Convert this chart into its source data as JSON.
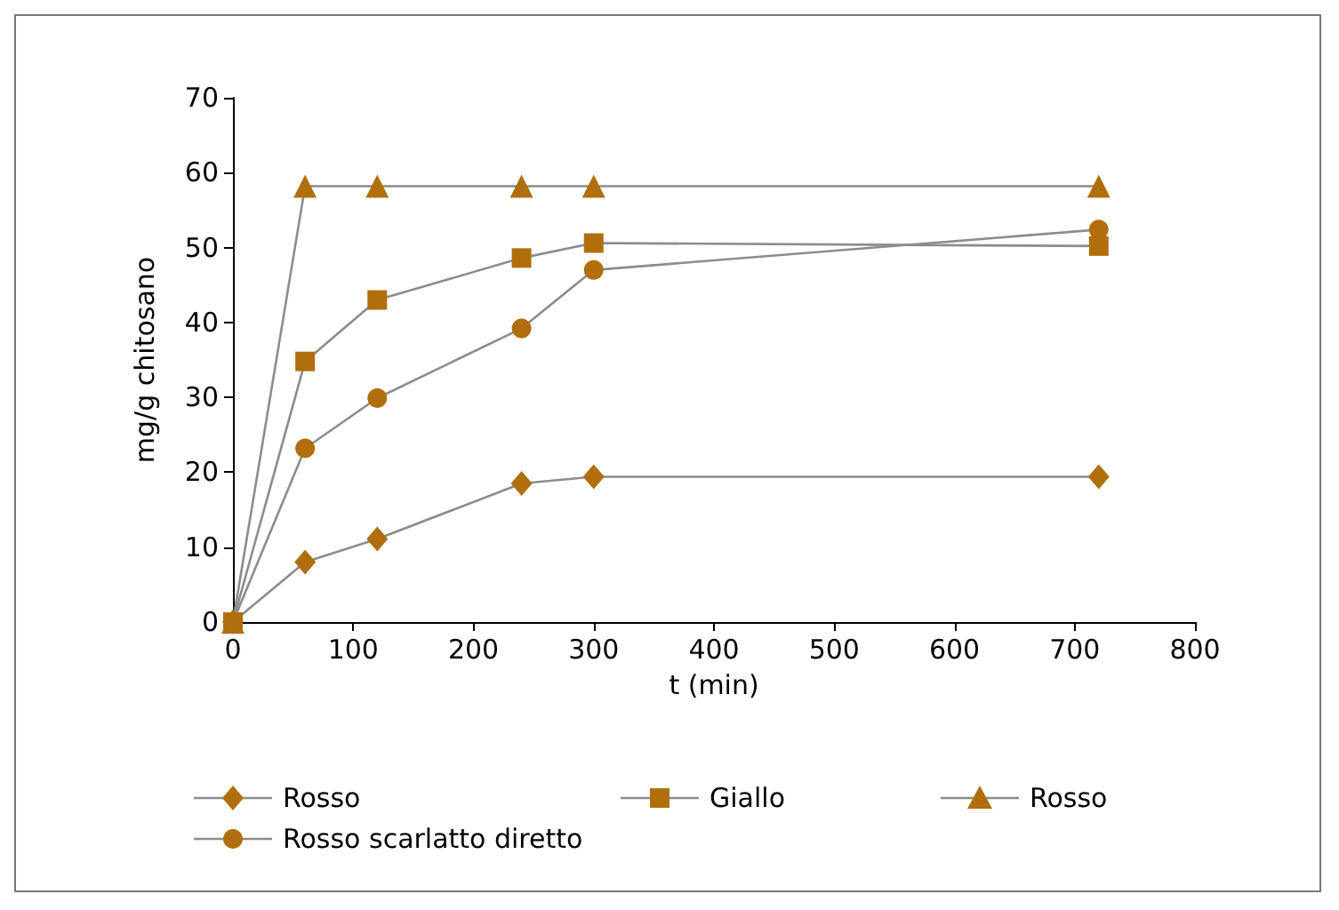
{
  "chart_data": {
    "type": "line",
    "xlabel": "t (min)",
    "ylabel": "mg/g chitosano",
    "x": [
      0,
      60,
      120,
      240,
      300,
      720
    ],
    "series": [
      {
        "name": "Rosso",
        "color": "#b06f0c",
        "marker": "diamond",
        "values": [
          0,
          8,
          11.1,
          18.5,
          19.4,
          19.4
        ]
      },
      {
        "name": "Giallo",
        "color": "#b06f0c",
        "marker": "square",
        "values": [
          0,
          34.8,
          43,
          48.6,
          50.6,
          50.2
        ]
      },
      {
        "name": "Rosso",
        "color": "#b06f0c",
        "marker": "triangle",
        "values": [
          0,
          58.2,
          58.2,
          58.2,
          58.2,
          58.2
        ]
      },
      {
        "name": "Rosso scarlatto diretto",
        "color": "#b06f0c",
        "marker": "circle",
        "values": [
          0,
          23.2,
          29.9,
          39.2,
          47,
          52.4
        ]
      }
    ],
    "xlim": [
      0,
      800
    ],
    "xticks": [
      0,
      100,
      200,
      300,
      400,
      500,
      600,
      700,
      800
    ],
    "ylim": [
      0,
      70
    ],
    "yticks": [
      0,
      10,
      20,
      30,
      40,
      50,
      60,
      70
    ],
    "grid": false,
    "legend": "bottom",
    "line_style": "solid"
  }
}
